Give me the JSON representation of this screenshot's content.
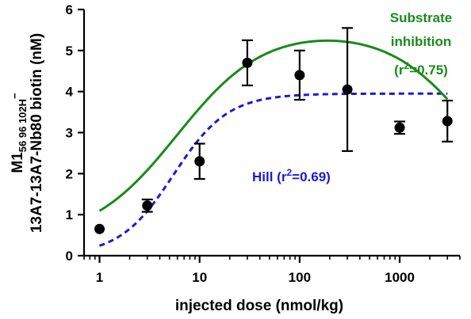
{
  "chart_data": {
    "type": "scatter",
    "title": "",
    "xlabel": "injected dose (nmol/kg)",
    "ylabel_line1": "M1",
    "ylabel_line1_sub": "56 96 102H",
    "ylabel_line1_sup": "−",
    "ylabel_line2": "13A7-13A7-Nb80 biotin (nM)",
    "x_scale": "log",
    "xlim": [
      0.7,
      4000
    ],
    "ylim": [
      0,
      6
    ],
    "x_ticks": [
      {
        "value": 1,
        "label": "1"
      },
      {
        "value": 10,
        "label": "10"
      },
      {
        "value": 100,
        "label": "100"
      },
      {
        "value": 1000,
        "label": "1000"
      }
    ],
    "y_ticks": [
      {
        "value": 0,
        "label": "0"
      },
      {
        "value": 1,
        "label": "1"
      },
      {
        "value": 2,
        "label": "2"
      },
      {
        "value": 3,
        "label": "3"
      },
      {
        "value": 4,
        "label": "4"
      },
      {
        "value": 5,
        "label": "5"
      },
      {
        "value": 6,
        "label": "6"
      }
    ],
    "points": [
      {
        "x": 1,
        "y": 0.65,
        "err": 0.0
      },
      {
        "x": 3,
        "y": 1.22,
        "err": 0.15
      },
      {
        "x": 10,
        "y": 2.3,
        "err": 0.43
      },
      {
        "x": 30,
        "y": 4.7,
        "err": 0.55
      },
      {
        "x": 100,
        "y": 4.4,
        "err": 0.6
      },
      {
        "x": 300,
        "y": 4.05,
        "err": 1.5
      },
      {
        "x": 1000,
        "y": 3.12,
        "err": 0.15
      },
      {
        "x": 3000,
        "y": 3.28,
        "err": 0.5
      }
    ],
    "fits": [
      {
        "model": "hill",
        "color": "#1b1bd6",
        "dashed": true,
        "label_pre": "Hill (r",
        "label_sup": "2",
        "label_post": "=0.69)",
        "params": {
          "bottom": 0,
          "top": 3.95,
          "ec50": 5.5,
          "hill": 1.6
        }
      },
      {
        "model": "substrate_inhibition",
        "color": "#1a8a1a",
        "dashed": false,
        "label_line1": "Substrate",
        "label_line2": "inhibition",
        "label_line3_pre": "(r",
        "label_line3_sup": "2",
        "label_line3_post": "=0.75)",
        "params": {
          "vmax": 5.2,
          "km": 6.0,
          "ki": 6000,
          "base": 0.35
        }
      }
    ]
  }
}
